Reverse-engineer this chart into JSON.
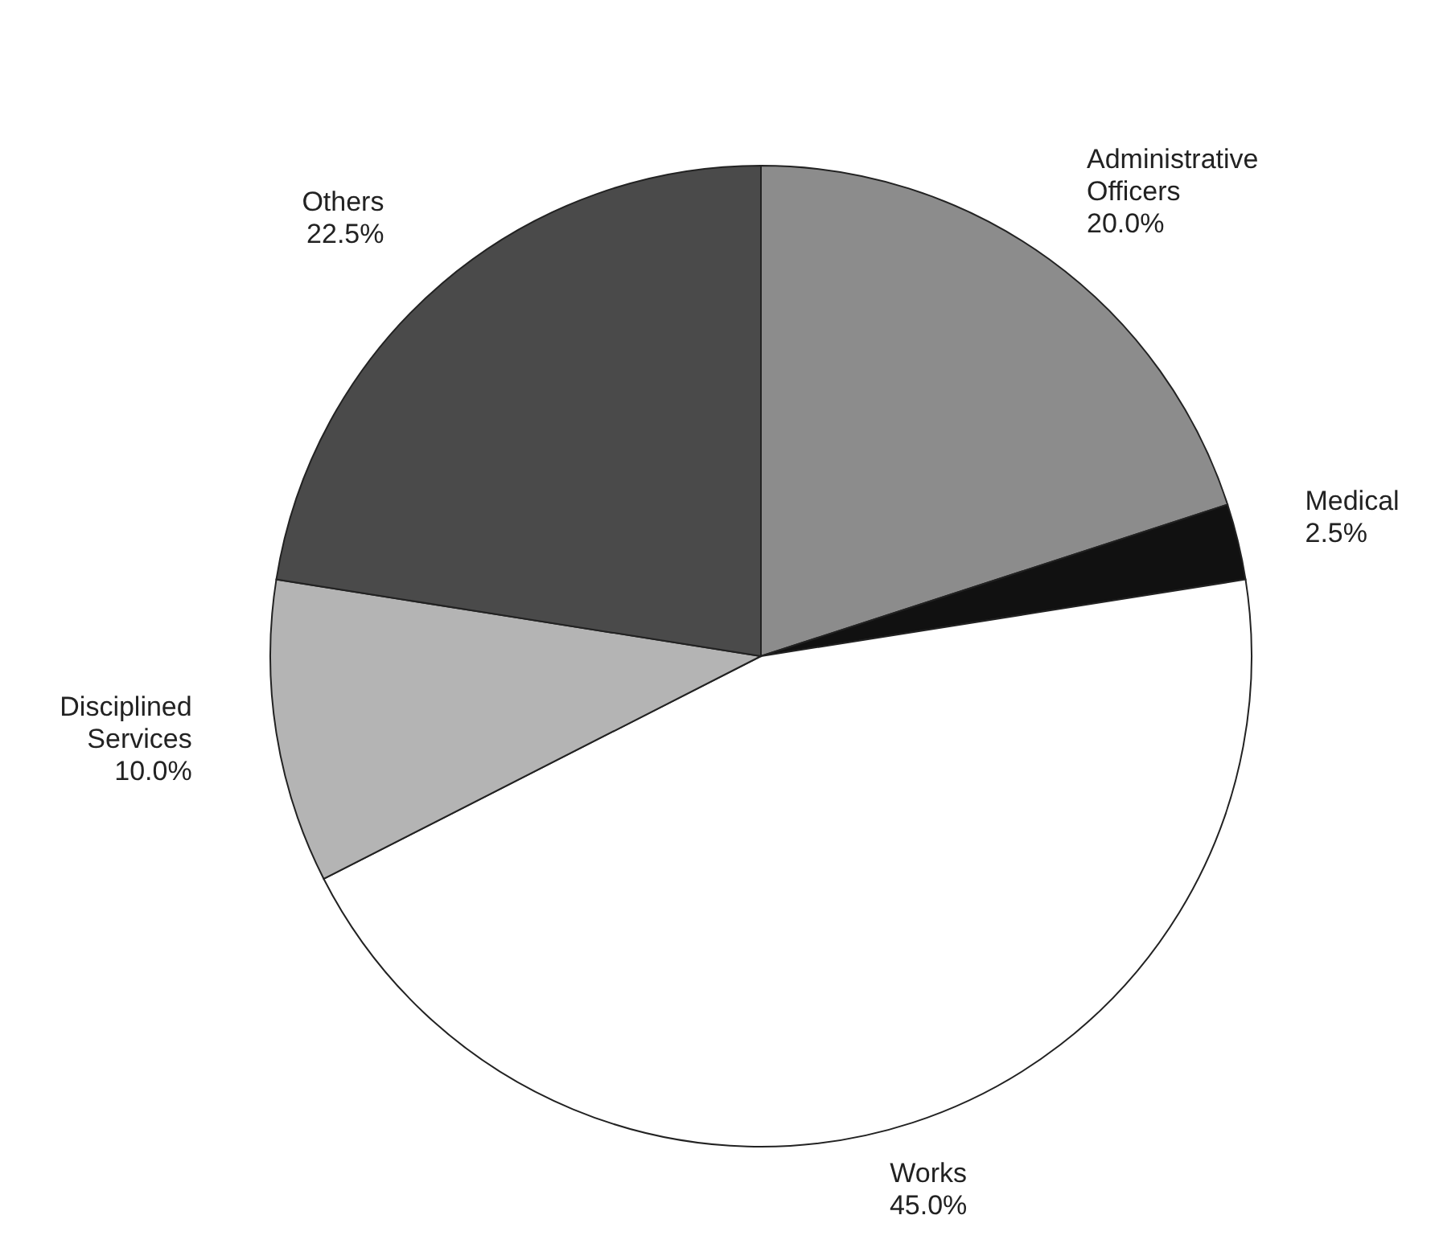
{
  "chart_data": {
    "type": "pie",
    "categories": [
      "Administrative Officers",
      "Medical",
      "Works",
      "Disciplined Services",
      "Others"
    ],
    "values": [
      20,
      2.5,
      45,
      10,
      22.5
    ],
    "value_labels": [
      "20.0%",
      "2.5%",
      "45.0%",
      "10.0%",
      "22.5%"
    ],
    "colors": [
      "#8c8c8c",
      "#111111",
      "#ffffff",
      "#b4b4b4",
      "#4a4a4a"
    ]
  }
}
